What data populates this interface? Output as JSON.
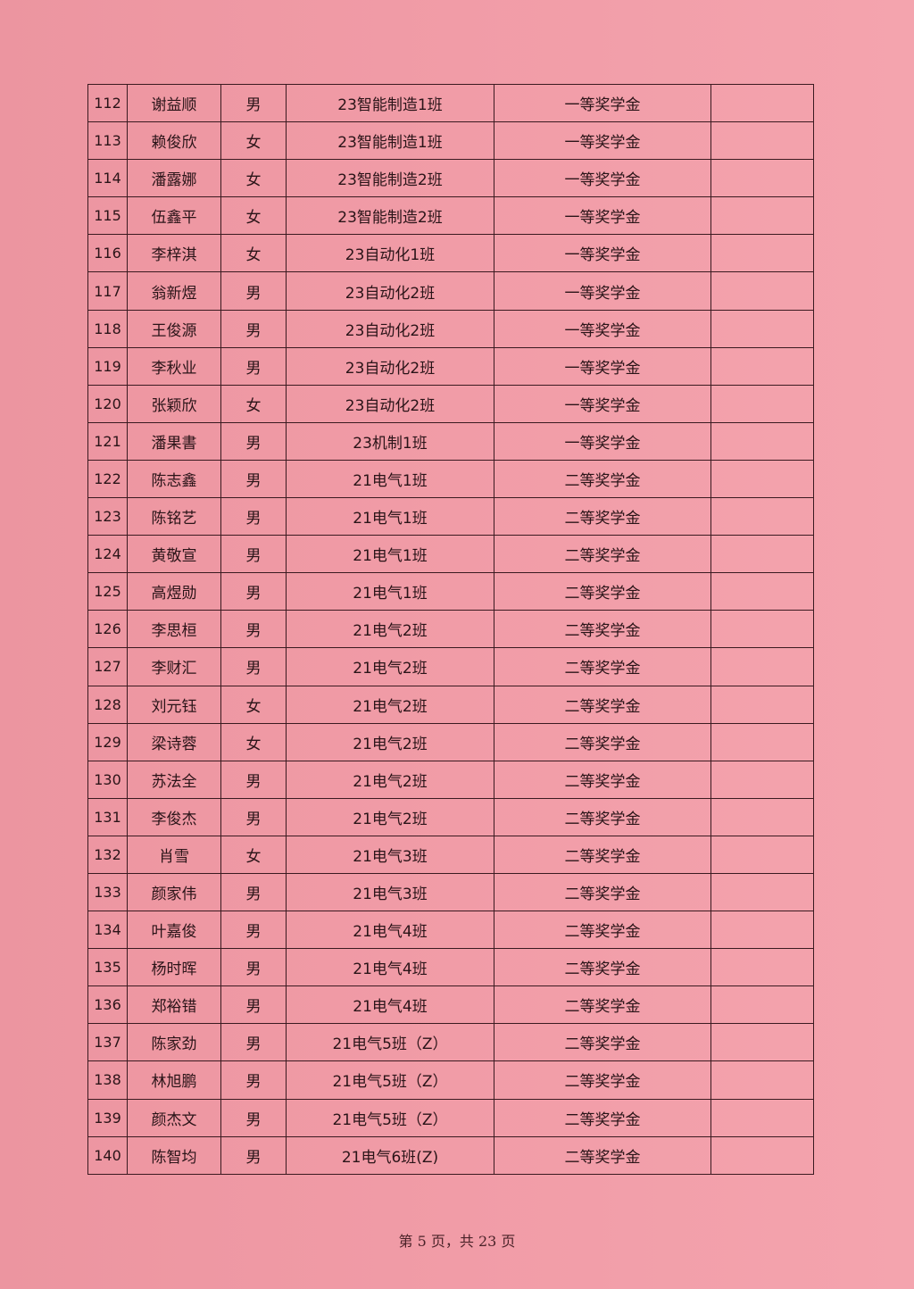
{
  "table": {
    "rows": [
      [
        "112",
        "谢益顺",
        "男",
        "23智能制造1班",
        "一等奖学金",
        ""
      ],
      [
        "113",
        "赖俊欣",
        "女",
        "23智能制造1班",
        "一等奖学金",
        ""
      ],
      [
        "114",
        "潘露娜",
        "女",
        "23智能制造2班",
        "一等奖学金",
        ""
      ],
      [
        "115",
        "伍鑫平",
        "女",
        "23智能制造2班",
        "一等奖学金",
        ""
      ],
      [
        "116",
        "李梓淇",
        "女",
        "23自动化1班",
        "一等奖学金",
        ""
      ],
      [
        "117",
        "翁新煜",
        "男",
        "23自动化2班",
        "一等奖学金",
        ""
      ],
      [
        "118",
        "王俊源",
        "男",
        "23自动化2班",
        "一等奖学金",
        ""
      ],
      [
        "119",
        "李秋业",
        "男",
        "23自动化2班",
        "一等奖学金",
        ""
      ],
      [
        "120",
        "张颖欣",
        "女",
        "23自动化2班",
        "一等奖学金",
        ""
      ],
      [
        "121",
        "潘果書",
        "男",
        "23机制1班",
        "一等奖学金",
        ""
      ],
      [
        "122",
        "陈志鑫",
        "男",
        "21电气1班",
        "二等奖学金",
        ""
      ],
      [
        "123",
        "陈铭艺",
        "男",
        "21电气1班",
        "二等奖学金",
        ""
      ],
      [
        "124",
        "黄敬宣",
        "男",
        "21电气1班",
        "二等奖学金",
        ""
      ],
      [
        "125",
        "高煜勋",
        "男",
        "21电气1班",
        "二等奖学金",
        ""
      ],
      [
        "126",
        "李思桓",
        "男",
        "21电气2班",
        "二等奖学金",
        ""
      ],
      [
        "127",
        "李财汇",
        "男",
        "21电气2班",
        "二等奖学金",
        ""
      ],
      [
        "128",
        "刘元钰",
        "女",
        "21电气2班",
        "二等奖学金",
        ""
      ],
      [
        "129",
        "梁诗蓉",
        "女",
        "21电气2班",
        "二等奖学金",
        ""
      ],
      [
        "130",
        "苏法全",
        "男",
        "21电气2班",
        "二等奖学金",
        ""
      ],
      [
        "131",
        "李俊杰",
        "男",
        "21电气2班",
        "二等奖学金",
        ""
      ],
      [
        "132",
        "肖雪",
        "女",
        "21电气3班",
        "二等奖学金",
        ""
      ],
      [
        "133",
        "颜家伟",
        "男",
        "21电气3班",
        "二等奖学金",
        ""
      ],
      [
        "134",
        "叶嘉俊",
        "男",
        "21电气4班",
        "二等奖学金",
        ""
      ],
      [
        "135",
        "杨时晖",
        "男",
        "21电气4班",
        "二等奖学金",
        ""
      ],
      [
        "136",
        "郑裕错",
        "男",
        "21电气4班",
        "二等奖学金",
        ""
      ],
      [
        "137",
        "陈家劲",
        "男",
        "21电气5班（Z）",
        "二等奖学金",
        ""
      ],
      [
        "138",
        "林旭鹏",
        "男",
        "21电气5班（Z）",
        "二等奖学金",
        ""
      ],
      [
        "139",
        "颜杰文",
        "男",
        "21电气5班（Z）",
        "二等奖学金",
        ""
      ],
      [
        "140",
        "陈智均",
        "男",
        "21电气6班(Z)",
        "二等奖学金",
        ""
      ]
    ]
  },
  "footer": {
    "page_text": "第 5 页，共 23 页"
  }
}
